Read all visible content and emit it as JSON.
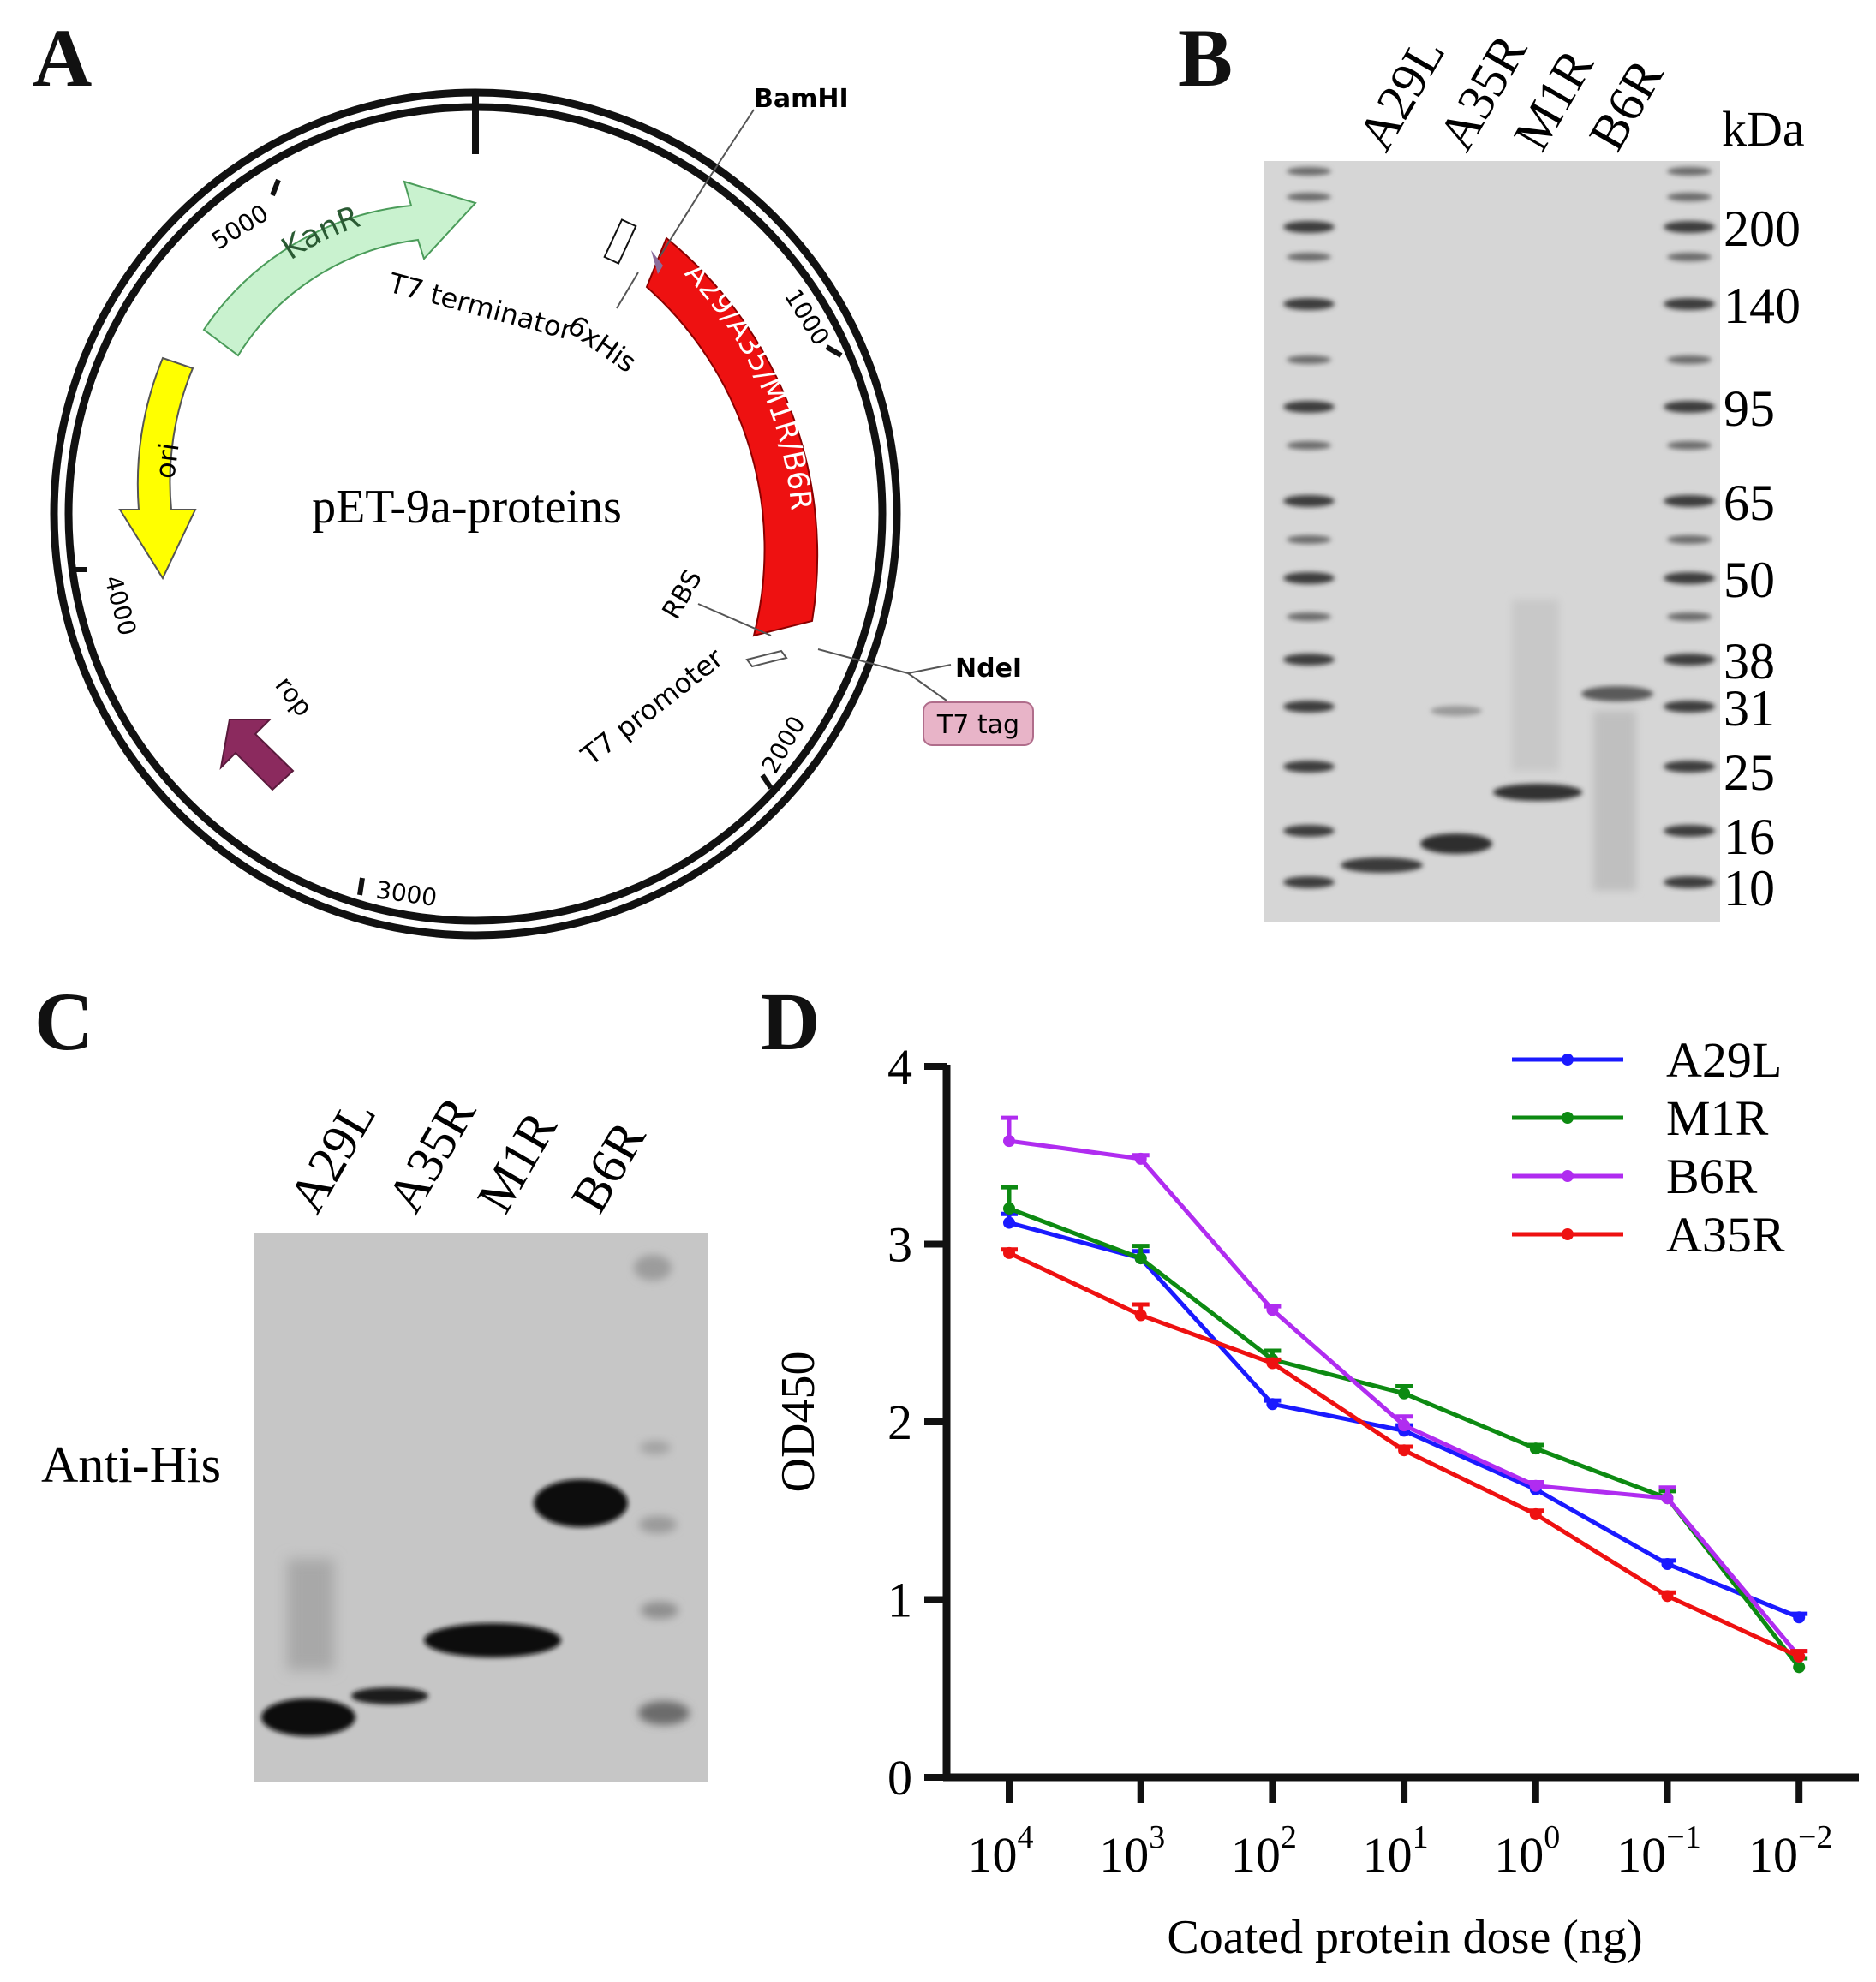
{
  "panels": {
    "a": {
      "letter": "A"
    },
    "b": {
      "letter": "B"
    },
    "c": {
      "letter": "C"
    },
    "d": {
      "letter": "D"
    }
  },
  "plasmid": {
    "name": "pET-9a-proteins",
    "ticks": [
      "1000",
      "2000",
      "3000",
      "4000",
      "5000"
    ],
    "features": {
      "kanr": "KanR",
      "ori": "ori",
      "rop": "rop",
      "insert": "A29/A35/M1R/B6R",
      "t7_terminator": "T7 terminator",
      "his_tag": "6xHis",
      "rbs": "RBS",
      "t7_promoter": "T7 promoter",
      "t7_tag": "T7 tag"
    },
    "sites": {
      "bamhi": "BamHI",
      "ndei": "NdeI"
    },
    "colors": {
      "kanr": "#c9f2cf",
      "ori": "#ffff00",
      "rop": "#8b2a5e",
      "insert": "#ee1111",
      "t7_tag_bg": "#e8b4c8"
    }
  },
  "sds_gel": {
    "lanes": [
      "A29L",
      "A35R",
      "M1R",
      "B6R"
    ],
    "unit": "kDa",
    "markers": [
      "200",
      "140",
      "95",
      "65",
      "50",
      "38",
      "31",
      "25",
      "16",
      "10"
    ]
  },
  "western": {
    "lanes": [
      "A29L",
      "A35R",
      "M1R",
      "B6R"
    ],
    "antibody": "Anti-His"
  },
  "chart_data": {
    "type": "line",
    "xlabel": "Coated protein dose (ng)",
    "ylabel": "OD450",
    "x": [
      10000,
      1000,
      100,
      10,
      1,
      0.1,
      0.01
    ],
    "x_tick_base": "10",
    "x_tick_exponents": [
      "4",
      "3",
      "2",
      "1",
      "0",
      "−1",
      "−2"
    ],
    "x_scale": "log, decreasing",
    "ylim": [
      0,
      4
    ],
    "y_ticks": [
      "0",
      "1",
      "2",
      "3",
      "4"
    ],
    "legend": "top-right",
    "series": [
      {
        "name": "A29L",
        "color": "#1a1aff",
        "values": [
          3.12,
          2.92,
          2.1,
          1.95,
          1.62,
          1.2,
          0.9
        ],
        "errors": [
          0.05,
          0.04,
          0.02,
          0.03,
          0.02,
          0.02,
          0.02
        ]
      },
      {
        "name": "M1R",
        "color": "#0d8a12",
        "values": [
          3.2,
          2.92,
          2.35,
          2.16,
          1.85,
          1.57,
          0.62
        ],
        "errors": [
          0.12,
          0.07,
          0.05,
          0.04,
          0.02,
          0.04,
          0.05
        ]
      },
      {
        "name": "B6R",
        "color": "#b02cf0",
        "values": [
          3.58,
          3.48,
          2.63,
          1.98,
          1.64,
          1.57,
          0.68
        ],
        "errors": [
          0.13,
          0.02,
          0.02,
          0.05,
          0.02,
          0.06,
          0.03
        ]
      },
      {
        "name": "A35R",
        "color": "#ee1111",
        "values": [
          2.95,
          2.6,
          2.33,
          1.84,
          1.48,
          1.02,
          0.68
        ],
        "errors": [
          0.02,
          0.06,
          0.02,
          0.02,
          0.02,
          0.02,
          0.03
        ]
      }
    ]
  }
}
